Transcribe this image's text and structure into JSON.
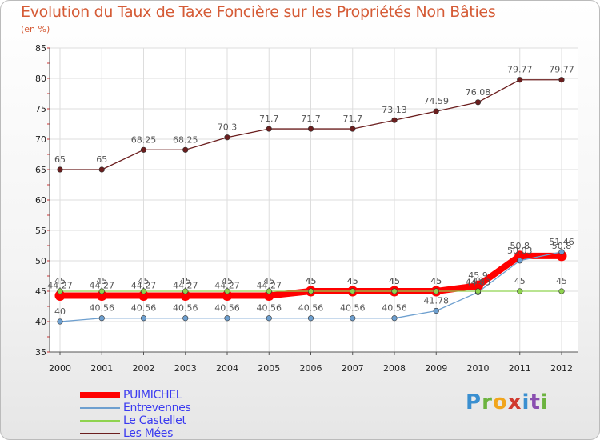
{
  "title": "Evolution du Taux de Taxe Foncière sur les Propriétés Non Bâties",
  "unit": "(en %)",
  "logo": {
    "text": "Proxiti",
    "colors": [
      "#3a8fd0",
      "#6cb33f",
      "#f1a51c",
      "#d03a2f",
      "#3a8fd0",
      "#8a4fb0",
      "#6cb33f"
    ]
  },
  "chart_data": {
    "type": "line",
    "title": "Evolution du Taux de Taxe Foncière sur les Propriétés Non Bâties",
    "xlabel": "",
    "ylabel": "(en %)",
    "ylim": [
      35,
      85
    ],
    "yticks": [
      35,
      40,
      45,
      50,
      55,
      60,
      65,
      70,
      75,
      80,
      85
    ],
    "categories": [
      "2000",
      "2001",
      "2002",
      "2003",
      "2004",
      "2005",
      "2006",
      "2007",
      "2008",
      "2009",
      "2010",
      "2011",
      "2012"
    ],
    "series": [
      {
        "name": "PUIMICHEL",
        "color": "#ff0000",
        "kind": "thick",
        "values": [
          44.27,
          44.27,
          44.27,
          44.27,
          44.27,
          44.27,
          45,
          45,
          45,
          45,
          45.9,
          50.8,
          50.8
        ],
        "labels": [
          "44.27",
          "44.27",
          "44.27",
          "44.27",
          "44.27",
          "44.27",
          "45",
          "45",
          "45",
          "45",
          "45.9",
          "50.8",
          "50.8"
        ]
      },
      {
        "name": "Entrevennes",
        "color": "#6d9fcf",
        "kind": "thin",
        "values": [
          40,
          40.56,
          40.56,
          40.56,
          40.56,
          40.56,
          40.56,
          40.56,
          40.56,
          41.78,
          44.83,
          50.03,
          51.46
        ],
        "labels": [
          "40",
          "40.56",
          "40.56",
          "40.56",
          "40.56",
          "40.56",
          "40.56",
          "40.56",
          "40.56",
          "41.78",
          "44.83",
          "50.03",
          "51.46"
        ]
      },
      {
        "name": "Le Castellet",
        "color": "#8fd34f",
        "kind": "thin",
        "values": [
          45,
          45,
          45,
          45,
          45,
          45,
          45,
          45,
          45,
          45,
          45,
          45,
          45
        ],
        "labels": [
          "45",
          "45",
          "45",
          "45",
          "45",
          "45",
          "45",
          "45",
          "45",
          "45",
          "45",
          "45",
          "45"
        ]
      },
      {
        "name": "Les Mées",
        "color": "#6b1e1e",
        "kind": "thin",
        "values": [
          65,
          65,
          68.25,
          68.25,
          70.3,
          71.7,
          71.7,
          71.7,
          73.13,
          74.59,
          76.08,
          79.77,
          79.77
        ],
        "labels": [
          "65",
          "65",
          "68.25",
          "68.25",
          "70.3",
          "71.7",
          "71.7",
          "71.7",
          "73.13",
          "74.59",
          "76.08",
          "79.77",
          "79.77"
        ]
      }
    ],
    "grid": true,
    "legend": "bottom-left"
  }
}
